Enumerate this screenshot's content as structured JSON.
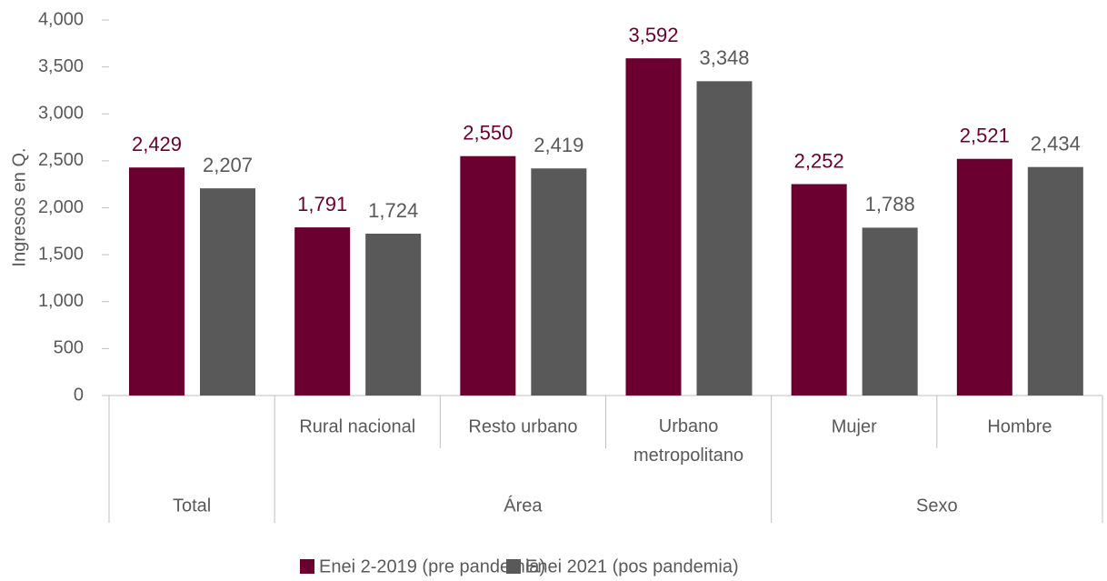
{
  "chart_data": {
    "type": "bar",
    "ylabel": "Ingresos en Q.",
    "categories": [
      null,
      "Rural nacional",
      "Resto urbano",
      "Urbano metropolitano",
      "Mujer",
      "Hombre"
    ],
    "groups": [
      "Total",
      "Área",
      "Área",
      "Área",
      "Sexo",
      "Sexo"
    ],
    "series": [
      {
        "name": "Enei 2-2019 (pre pandemia)",
        "color": "#6b0030",
        "values": [
          2429,
          1791,
          2550,
          3592,
          2252,
          2521
        ],
        "value_labels": [
          "2,429",
          "1,791",
          "2,550",
          "3,592",
          "2,252",
          "2,521"
        ]
      },
      {
        "name": "Enei 2021 (pos pandemia)",
        "color": "#595959",
        "values": [
          2207,
          1724,
          2419,
          3348,
          1788,
          2434
        ],
        "value_labels": [
          "2,207",
          "1,724",
          "2,419",
          "3,348",
          "1,788",
          "2,434"
        ]
      }
    ],
    "ylim": [
      0,
      4000
    ],
    "yticks": [
      0,
      500,
      {
        "value": 1000,
        "label": "1,000"
      },
      {
        "value": 1500,
        "label": "1,500"
      },
      {
        "value": 2000,
        "label": "2,000"
      },
      {
        "value": 2500,
        "label": "2,500"
      },
      {
        "value": 3000,
        "label": "3,000"
      },
      {
        "value": 3500,
        "label": "3,500"
      },
      {
        "value": 4000,
        "label": "4,000"
      }
    ],
    "grid": false,
    "legend": "bottom"
  }
}
